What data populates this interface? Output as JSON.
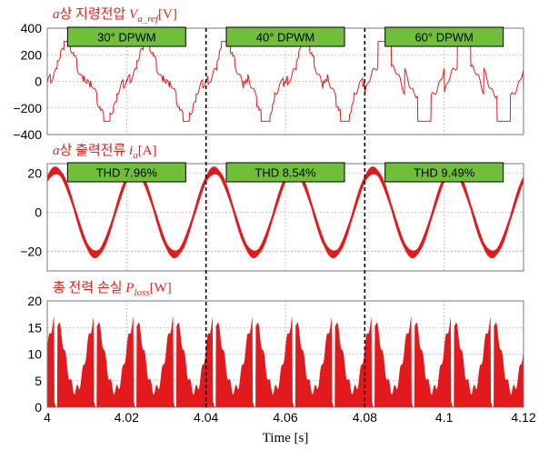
{
  "figure": {
    "xlabel": "Time [s]",
    "x_ticks": [
      "4",
      "4.02",
      "4.04",
      "4.06",
      "4.08",
      "4.1",
      "4.12"
    ],
    "colors": {
      "trace": "#e31a1c",
      "badge": "#6fbf3b",
      "title": "#e0201c",
      "grid": "#b4b4b4"
    }
  },
  "chart_data": [
    {
      "type": "line",
      "title": "a상 지령전압 V_a_ref [V]",
      "xlabel": "Time [s]",
      "ylabel": "",
      "xlim": [
        4.0,
        4.12
      ],
      "ylim": [
        -400,
        400
      ],
      "y_ticks": [
        "400",
        "200",
        "0",
        "−200",
        "−400"
      ],
      "grid": true,
      "modes": [
        {
          "label": "30° DPWM",
          "x_start": 4.0,
          "x_end": 4.04,
          "clamp_deg": 30
        },
        {
          "label": "40° DPWM",
          "x_start": 4.04,
          "x_end": 4.08,
          "clamp_deg": 40
        },
        {
          "label": "60° DPWM",
          "x_start": 4.08,
          "x_end": 4.12,
          "clamp_deg": 60
        }
      ],
      "fundamental_hz": 50,
      "clamp_level_v": 300,
      "series": [
        {
          "values_peak": 300
        }
      ]
    },
    {
      "type": "line",
      "title": "a상 출력전류 i_a [A]",
      "xlabel": "Time [s]",
      "ylabel": "",
      "xlim": [
        4.0,
        4.12
      ],
      "ylim": [
        -30,
        25
      ],
      "y_ticks": [
        "20",
        "0",
        "−20"
      ],
      "grid": true,
      "annotations": [
        "THD 7.96%",
        "THD 8.54%",
        "THD 9.49%"
      ],
      "fundamental_hz": 50,
      "series": [
        {
          "amplitude_a": 21.5
        }
      ]
    },
    {
      "type": "area",
      "title": "총 전력 손실 P_loss [W]",
      "xlabel": "Time [s]",
      "ylabel": "",
      "xlim": [
        4.0,
        4.12
      ],
      "ylim": [
        0,
        20
      ],
      "y_ticks": [
        "20",
        "15",
        "10",
        "5",
        "0"
      ],
      "grid": true,
      "series": [
        {
          "peak_w": 16.5,
          "trough_w": 4.0
        }
      ]
    }
  ]
}
